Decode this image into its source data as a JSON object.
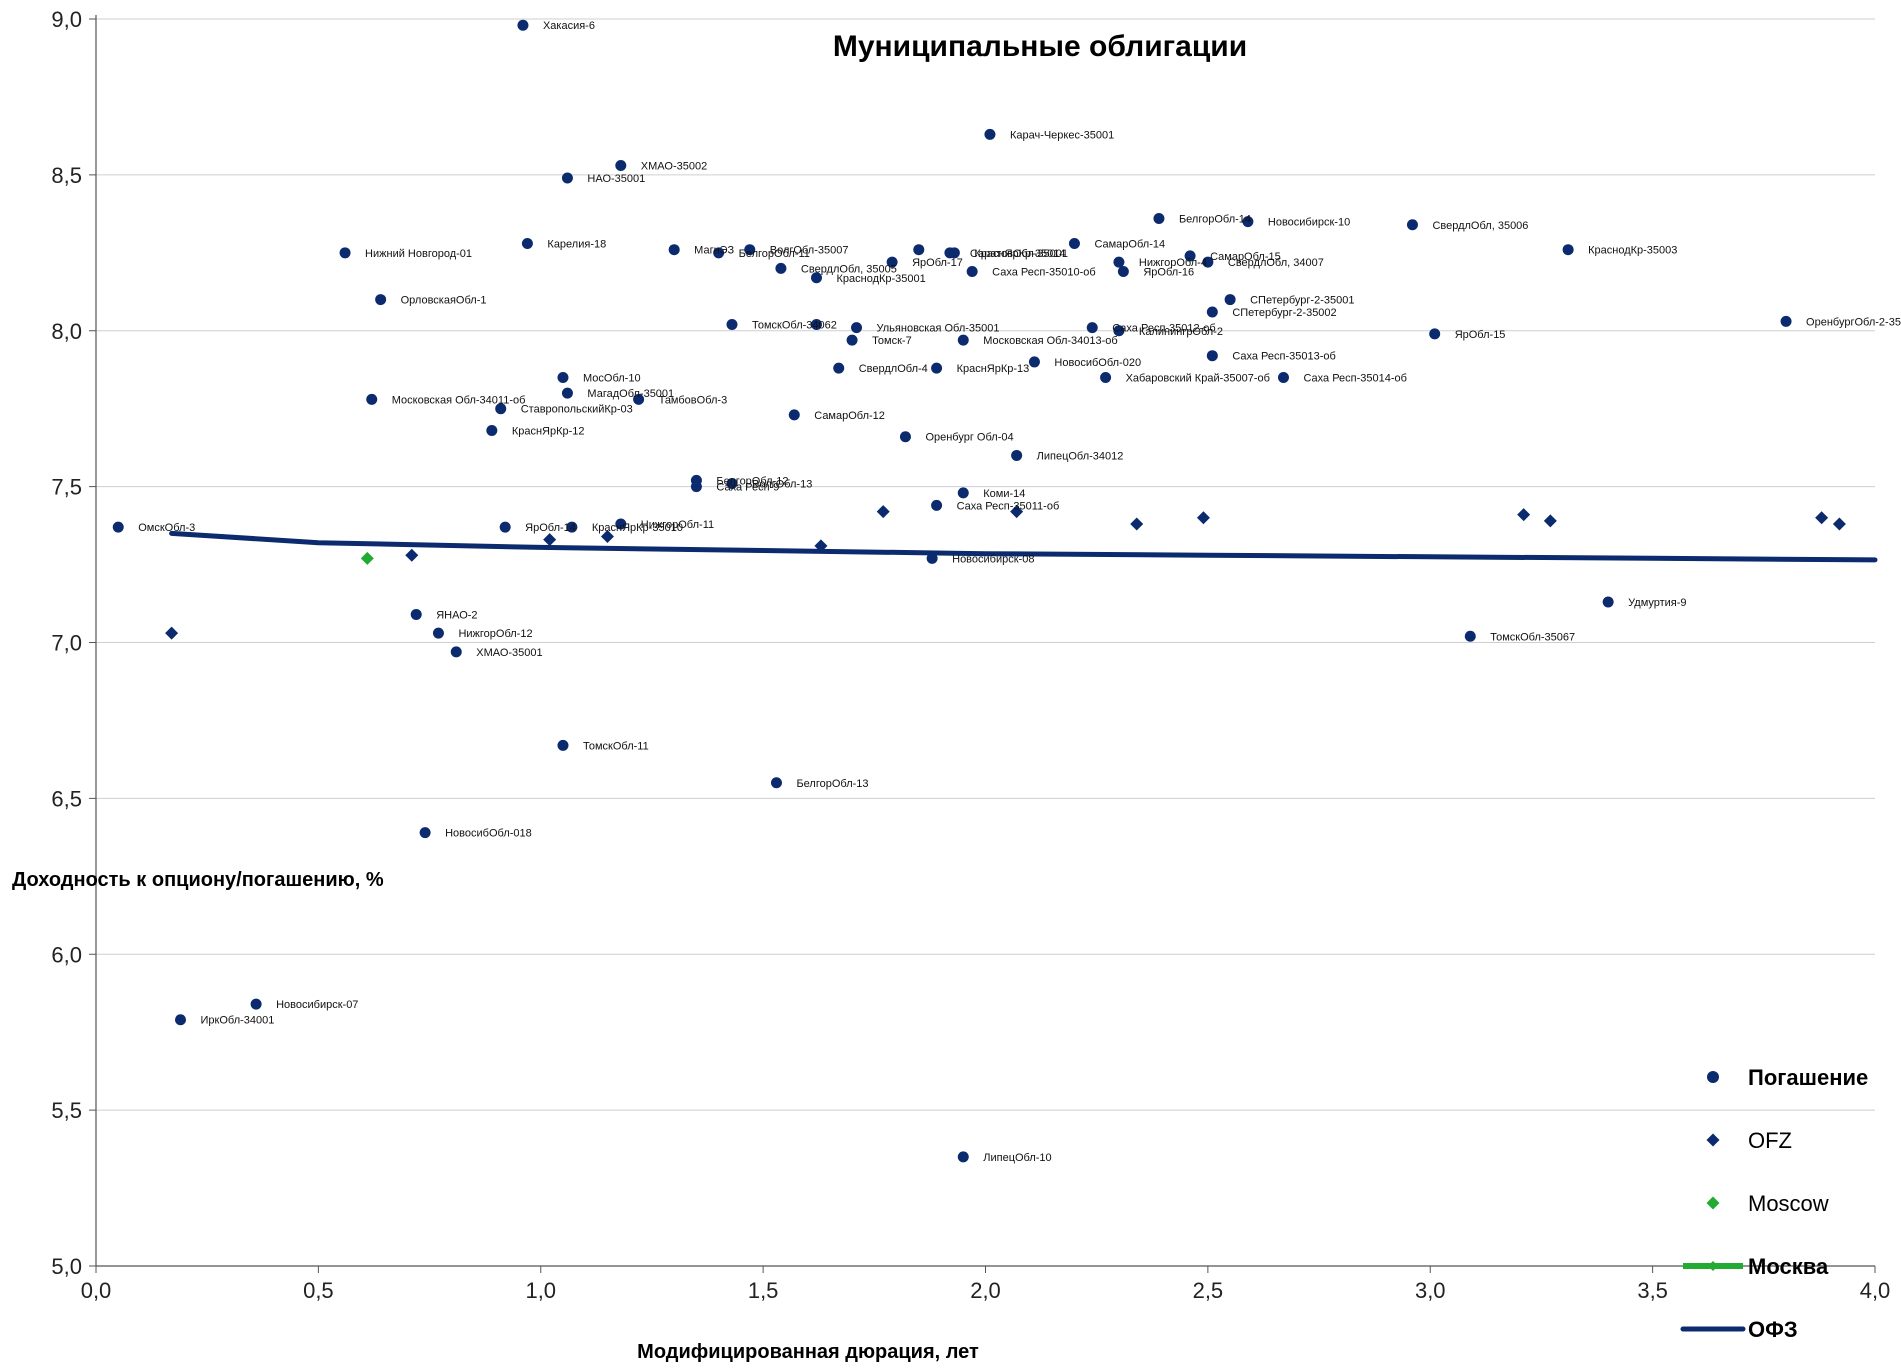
{
  "chart_data": {
    "type": "scatter",
    "title": "Муниципальные облигации",
    "xlabel": "Модифицированная дюрация, лет",
    "ylabel": "Доходность к опциону/погашению, %",
    "xlim": [
      0,
      4
    ],
    "ylim": [
      5,
      9
    ],
    "xticks": [
      "0,0",
      "0,5",
      "1,0",
      "1,5",
      "2,0",
      "2,5",
      "3,0",
      "3,5",
      "4,0"
    ],
    "yticks": [
      "5,0",
      "5,5",
      "6,0",
      "6,5",
      "7,0",
      "7,5",
      "8,0",
      "8,5",
      "9,0"
    ],
    "grid": "horizontal",
    "colors": {
      "navy": "#0b2b6e",
      "green": "#22aa33",
      "grid": "#cfcfcf"
    },
    "legend": [
      {
        "label": "Погашение",
        "marker": "circle",
        "color": "#0b2b6e",
        "bold": true
      },
      {
        "label": "OFZ",
        "marker": "diamond",
        "color": "#0b2b6e",
        "bold": false
      },
      {
        "label": "Moscow",
        "marker": "diamond",
        "color": "#22aa33",
        "bold": false
      },
      {
        "label": "Москва",
        "marker": "line-diamond",
        "color": "#22aa33",
        "bold": true
      },
      {
        "label": "ОФЗ",
        "marker": "line",
        "color": "#0b2b6e",
        "bold": true
      }
    ],
    "series": [
      {
        "name": "Погашение",
        "marker": "circle",
        "points": [
          {
            "x": 0.96,
            "y": 8.98,
            "label": "Хакасия-6"
          },
          {
            "x": 2.01,
            "y": 8.63,
            "label": "Карач-Черкес-35001"
          },
          {
            "x": 1.18,
            "y": 8.53,
            "label": "ХМАО-35002"
          },
          {
            "x": 1.06,
            "y": 8.49,
            "label": "НАО-35001"
          },
          {
            "x": 2.39,
            "y": 8.36,
            "label": "БелгорОбл-14"
          },
          {
            "x": 2.59,
            "y": 8.35,
            "label": "Новосибирск-10"
          },
          {
            "x": 2.96,
            "y": 8.34,
            "label": "СвердлОбл, 35006"
          },
          {
            "x": 0.97,
            "y": 8.28,
            "label": "Карелия-18"
          },
          {
            "x": 2.2,
            "y": 8.28,
            "label": "СамарОбл-14"
          },
          {
            "x": 0.56,
            "y": 8.25,
            "label": "Нижний Новгород-01"
          },
          {
            "x": 1.3,
            "y": 8.26,
            "label": "МагнЭЗ"
          },
          {
            "x": 1.47,
            "y": 8.26,
            "label": "ВолгОбл-35007"
          },
          {
            "x": 1.4,
            "y": 8.25,
            "label": "БелгорОбл-11"
          },
          {
            "x": 1.85,
            "y": 8.26,
            "label": ""
          },
          {
            "x": 1.92,
            "y": 8.25,
            "label": "СаратовОбл-35001"
          },
          {
            "x": 1.93,
            "y": 8.25,
            "label": "КраснЯрКр-35014"
          },
          {
            "x": 2.46,
            "y": 8.24,
            "label": "СамарОбл-15"
          },
          {
            "x": 3.31,
            "y": 8.26,
            "label": "КраснодКр-35003"
          },
          {
            "x": 1.79,
            "y": 8.22,
            "label": "ЯрОбл-17"
          },
          {
            "x": 2.3,
            "y": 8.22,
            "label": "НижгорОбл-4"
          },
          {
            "x": 2.5,
            "y": 8.22,
            "label": "СвердлОбл, 34007"
          },
          {
            "x": 1.54,
            "y": 8.2,
            "label": "СвердлОбл, 35005"
          },
          {
            "x": 1.97,
            "y": 8.19,
            "label": "Саха Респ-35010-об"
          },
          {
            "x": 2.31,
            "y": 8.19,
            "label": "ЯрОбл-16"
          },
          {
            "x": 1.62,
            "y": 8.17,
            "label": "КраснодКр-35001"
          },
          {
            "x": 0.64,
            "y": 8.1,
            "label": "ОрловскаяОбл-1"
          },
          {
            "x": 2.55,
            "y": 8.1,
            "label": "СПетербург-2-35001"
          },
          {
            "x": 2.51,
            "y": 8.06,
            "label": "СПетербург-2-35002"
          },
          {
            "x": 1.43,
            "y": 8.02,
            "label": "ТомскОбл-34062"
          },
          {
            "x": 1.62,
            "y": 8.02,
            "label": ""
          },
          {
            "x": 1.71,
            "y": 8.01,
            "label": "Ульяновская Обл-35001"
          },
          {
            "x": 2.24,
            "y": 8.01,
            "label": "Саха Респ-35012-об"
          },
          {
            "x": 2.3,
            "y": 8.0,
            "label": "КалинингрОбл-2"
          },
          {
            "x": 3.01,
            "y": 7.99,
            "label": "ЯрОбл-15"
          },
          {
            "x": 1.7,
            "y": 7.97,
            "label": "Томск-7"
          },
          {
            "x": 1.95,
            "y": 7.97,
            "label": "Московская Обл-34013-об"
          },
          {
            "x": 3.8,
            "y": 8.03,
            "label": "ОренбургОбл-2-35004"
          },
          {
            "x": 2.51,
            "y": 7.92,
            "label": "Саха Респ-35013-об"
          },
          {
            "x": 2.11,
            "y": 7.9,
            "label": "НовосибОбл-020"
          },
          {
            "x": 1.67,
            "y": 7.88,
            "label": "СвердлОбл-4"
          },
          {
            "x": 1.89,
            "y": 7.88,
            "label": "КраснЯрКр-13"
          },
          {
            "x": 1.05,
            "y": 7.85,
            "label": "МосОбл-10"
          },
          {
            "x": 2.27,
            "y": 7.85,
            "label": "Хабаровский Край-35007-об"
          },
          {
            "x": 2.67,
            "y": 7.85,
            "label": "Саха Респ-35014-об"
          },
          {
            "x": 0.62,
            "y": 7.78,
            "label": "Московская Обл-34011-об"
          },
          {
            "x": 1.06,
            "y": 7.8,
            "label": "МагадОбл-35001"
          },
          {
            "x": 1.22,
            "y": 7.78,
            "label": "ТамбовОбл-3"
          },
          {
            "x": 0.91,
            "y": 7.75,
            "label": "СтавропольскийКр-03"
          },
          {
            "x": 1.57,
            "y": 7.73,
            "label": "СамарОбл-12"
          },
          {
            "x": 0.89,
            "y": 7.68,
            "label": "КраснЯрКр-12"
          },
          {
            "x": 1.82,
            "y": 7.66,
            "label": "Оренбург Обл-04"
          },
          {
            "x": 2.07,
            "y": 7.6,
            "label": "ЛипецОбл-34012"
          },
          {
            "x": 1.35,
            "y": 7.52,
            "label": "БелгорОбл-12"
          },
          {
            "x": 1.35,
            "y": 7.5,
            "label": "Саха Респ-9"
          },
          {
            "x": 1.43,
            "y": 7.51,
            "label": "ВолгОбл-13"
          },
          {
            "x": 1.95,
            "y": 7.48,
            "label": "Коми-14"
          },
          {
            "x": 1.89,
            "y": 7.44,
            "label": "Саха Респ-35011-об"
          },
          {
            "x": 0.05,
            "y": 7.37,
            "label": "ОмскОбл-3"
          },
          {
            "x": 0.92,
            "y": 7.37,
            "label": "ЯрОбл-14"
          },
          {
            "x": 1.07,
            "y": 7.37,
            "label": "КраснЯрКр-35010"
          },
          {
            "x": 1.18,
            "y": 7.38,
            "label": "НижгорОбл-11"
          },
          {
            "x": 1.88,
            "y": 7.27,
            "label": "Новосибирск-08"
          },
          {
            "x": 3.4,
            "y": 7.13,
            "label": "Удмуртия-9"
          },
          {
            "x": 0.72,
            "y": 7.09,
            "label": "ЯНАО-2"
          },
          {
            "x": 0.77,
            "y": 7.03,
            "label": "НижгорОбл-12"
          },
          {
            "x": 3.09,
            "y": 7.02,
            "label": "ТомскОбл-35067"
          },
          {
            "x": 0.81,
            "y": 6.97,
            "label": "ХМАО-35001"
          },
          {
            "x": 1.05,
            "y": 6.67,
            "label": "ТомскОбл-11"
          },
          {
            "x": 1.53,
            "y": 6.55,
            "label": "БелгорОбл-13"
          },
          {
            "x": 0.74,
            "y": 6.39,
            "label": "НовосибОбл-018"
          },
          {
            "x": 0.36,
            "y": 5.84,
            "label": "Новосибирск-07"
          },
          {
            "x": 0.19,
            "y": 5.79,
            "label": "ИркОбл-34001"
          },
          {
            "x": 1.95,
            "y": 5.35,
            "label": "ЛипецОбл-10"
          }
        ]
      },
      {
        "name": "OFZ",
        "marker": "diamond",
        "points": [
          {
            "x": 0.17,
            "y": 7.03
          },
          {
            "x": 0.71,
            "y": 7.28
          },
          {
            "x": 1.02,
            "y": 7.33
          },
          {
            "x": 1.15,
            "y": 7.34
          },
          {
            "x": 1.63,
            "y": 7.31
          },
          {
            "x": 1.77,
            "y": 7.42
          },
          {
            "x": 2.07,
            "y": 7.42
          },
          {
            "x": 2.34,
            "y": 7.38
          },
          {
            "x": 2.49,
            "y": 7.4
          },
          {
            "x": 3.21,
            "y": 7.41
          },
          {
            "x": 3.27,
            "y": 7.39
          },
          {
            "x": 3.88,
            "y": 7.4
          },
          {
            "x": 3.92,
            "y": 7.38
          }
        ]
      },
      {
        "name": "Moscow",
        "marker": "diamond",
        "points": [
          {
            "x": 0.61,
            "y": 7.27
          }
        ]
      },
      {
        "name": "ОФЗ",
        "marker": "line",
        "points": [
          {
            "x": 0.17,
            "y": 7.35
          },
          {
            "x": 0.5,
            "y": 7.32
          },
          {
            "x": 1.0,
            "y": 7.305
          },
          {
            "x": 1.5,
            "y": 7.295
          },
          {
            "x": 2.0,
            "y": 7.285
          },
          {
            "x": 2.5,
            "y": 7.28
          },
          {
            "x": 3.0,
            "y": 7.275
          },
          {
            "x": 3.5,
            "y": 7.27
          },
          {
            "x": 4.0,
            "y": 7.265
          }
        ]
      }
    ]
  }
}
